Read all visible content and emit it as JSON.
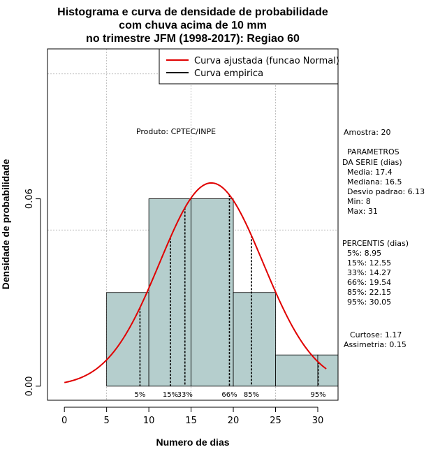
{
  "chart_data": {
    "type": "bar",
    "title_lines": [
      "Histograma e curva de densidade de probabilidade",
      "com chuva acima de 10 mm",
      "no trimestre JFM (1998-2017): Regiao 60"
    ],
    "xlabel": "Numero de dias",
    "ylabel": "Densidade de probabilidade",
    "xlim": [
      -2,
      32.4
    ],
    "ylim": [
      -0.0045,
      0.108
    ],
    "x_ticks": [
      0,
      5,
      10,
      15,
      20,
      25,
      30
    ],
    "y_ticks": [
      0.0,
      0.06
    ],
    "y_tick_labels": [
      "0.00",
      "0.06"
    ],
    "grid": true,
    "grid_x": [
      5,
      15,
      25
    ],
    "grid_y": [
      0.05,
      0.1
    ],
    "bins": [
      {
        "from": 5,
        "to": 10,
        "density": 0.03
      },
      {
        "from": 10,
        "to": 15,
        "density": 0.06
      },
      {
        "from": 15,
        "to": 20,
        "density": 0.06
      },
      {
        "from": 20,
        "to": 25,
        "density": 0.03
      },
      {
        "from": 25,
        "to": 30,
        "density": 0.01
      },
      {
        "from": 30,
        "to": 32.4,
        "density": 0.01
      }
    ],
    "bar_color": "#b5cecd",
    "curve": {
      "name": "Curva ajustada (funcao Normal)",
      "distribution": "normal",
      "mean": 17.4,
      "sd": 6.13,
      "x_range": [
        0,
        31
      ],
      "color": "#e00000"
    },
    "empirical": {
      "name": "Curva empirica",
      "color": "#000000"
    },
    "legend_position": "top-right",
    "percentiles": [
      {
        "label": "5%",
        "value": 8.95
      },
      {
        "label": "15%",
        "value": 12.55
      },
      {
        "label": "33%",
        "value": 14.27
      },
      {
        "label": "66%",
        "value": 19.54
      },
      {
        "label": "85%",
        "value": 22.15
      },
      {
        "label": "95%",
        "value": 30.05
      }
    ],
    "annotation": "Produto: CPTEC/INPE"
  },
  "side_panel": {
    "amostra": "Amostra: 20",
    "parametros_title_1": "PARAMETROS",
    "parametros_title_2": "DA SERIE (dias)",
    "media": "Media: 17.4",
    "mediana": "Mediana: 16.5",
    "desvio": "Desvio padrao: 6.13",
    "min": "Min: 8",
    "max": "Max: 31",
    "percentis_title": "PERCENTIS (dias)",
    "p5": "5%: 8.95",
    "p15": "15%: 12.55",
    "p33": "33%: 14.27",
    "p66": "66%: 19.54",
    "p85": "85%: 22.15",
    "p95": "95%: 30.05",
    "curtose": "Curtose: 1.17",
    "assimetria": "Assimetria: 0.15"
  }
}
